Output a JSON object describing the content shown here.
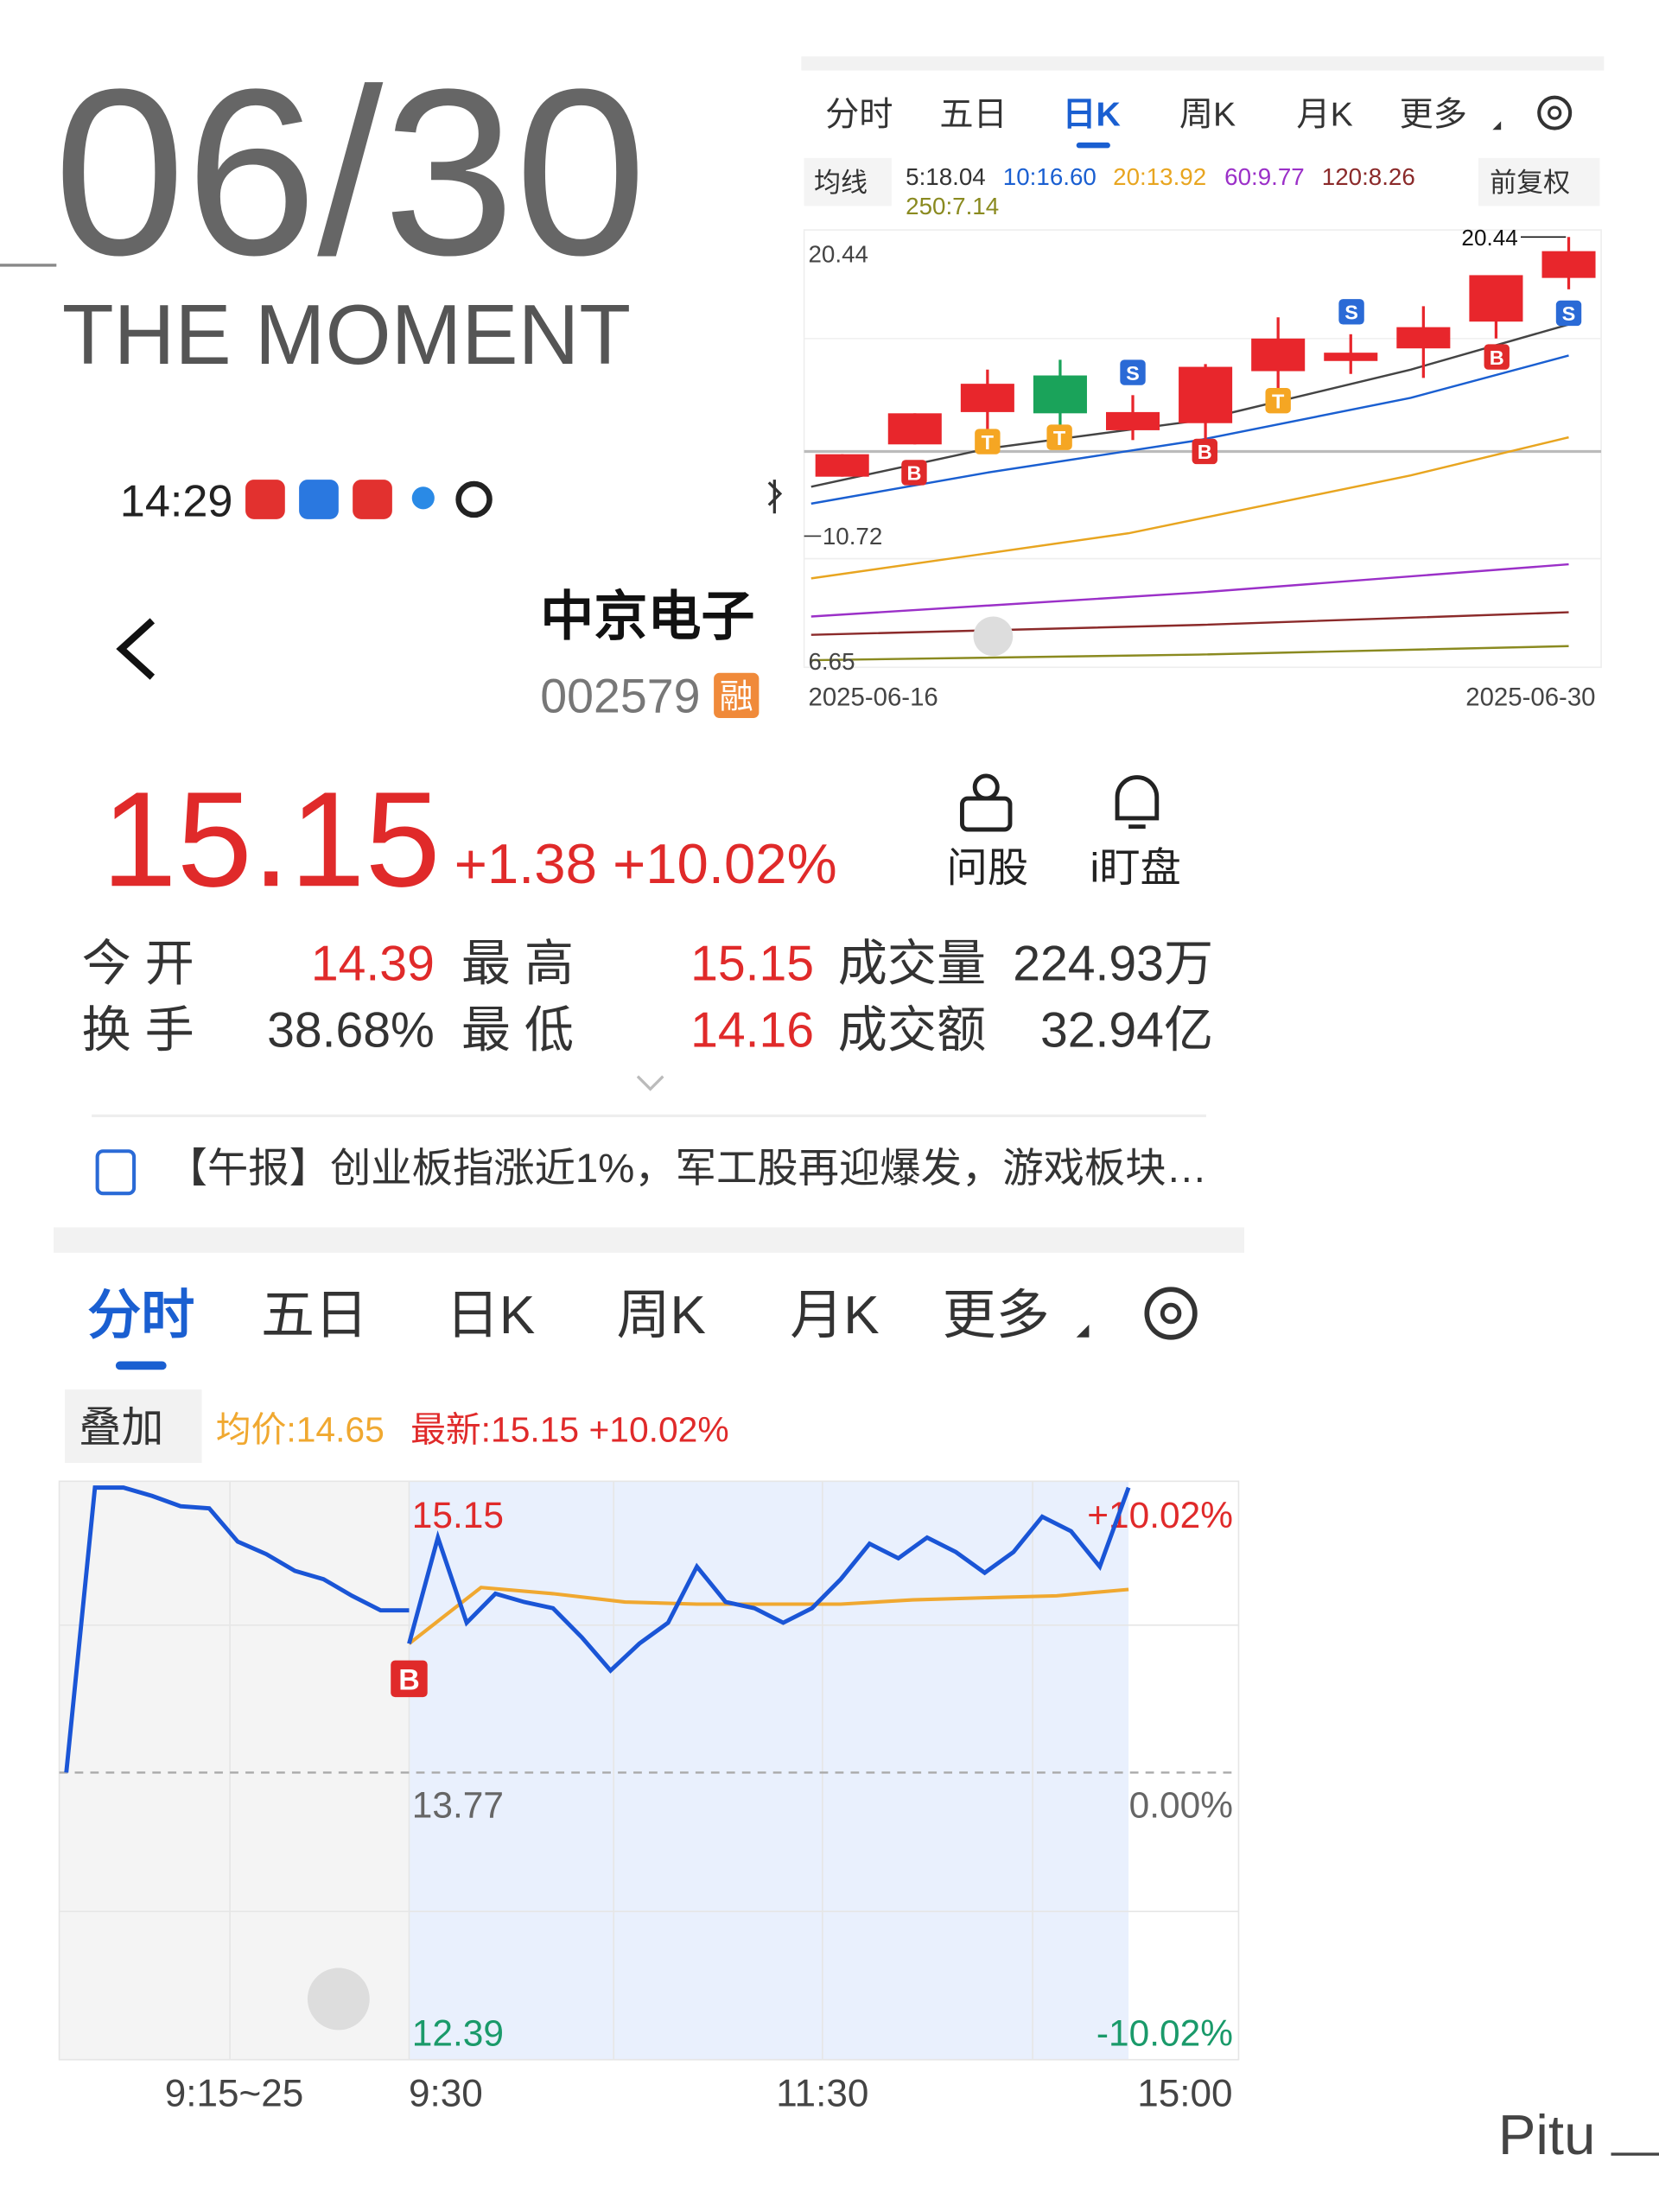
{
  "header": {
    "date": "06/30",
    "tagline": "THE MOMENT",
    "time": "14:29"
  },
  "stock": {
    "name": "中京电子",
    "code": "002579",
    "badge": "融",
    "price": "15.15",
    "change": "+1.38 +10.02%",
    "actions": [
      "问股",
      "i盯盘"
    ]
  },
  "stats": [
    [
      "今 开",
      "14.39",
      "最 高",
      "15.15",
      "成交量",
      "224.93万"
    ],
    [
      "换 手",
      "38.68%",
      "最 低",
      "14.16",
      "成交额",
      "32.94亿"
    ]
  ],
  "news": "【午报】创业板指涨近1%，军工股再迎爆发，游戏板块…",
  "kline": {
    "tabs": [
      "分时",
      "五日",
      "日K",
      "周K",
      "月K",
      "更多"
    ],
    "active": 2,
    "ma_button": "均线",
    "ma": [
      "5:18.04",
      "10:16.60",
      "20:13.92",
      "60:9.77",
      "120:8.26",
      "250:7.14"
    ],
    "adjust": "前复权",
    "levels": [
      20.44,
      10.72,
      6.65
    ],
    "high": 20.44,
    "dates": [
      "2025-06-16",
      "2025-06-30"
    ],
    "up_color": "#e8262c",
    "down_color": "#1aa35a",
    "candles": [
      {
        "open": 12.65,
        "close": 13.38,
        "high": 13.38,
        "low": 12.65
      },
      {
        "open": 13.7,
        "close": 14.71,
        "high": 14.71,
        "low": 13.7
      },
      {
        "open": 14.75,
        "close": 15.67,
        "high": 16.13,
        "low": 14.16
      },
      {
        "open": 15.94,
        "close": 14.71,
        "high": 16.45,
        "low": 14.16
      },
      {
        "open": 14.16,
        "close": 14.75,
        "high": 15.3,
        "low": 13.84
      },
      {
        "open": 14.39,
        "close": 16.22,
        "high": 16.31,
        "low": 13.7
      },
      {
        "open": 16.08,
        "close": 17.14,
        "high": 17.83,
        "low": 15.53
      },
      {
        "open": 16.41,
        "close": 16.68,
        "high": 17.28,
        "low": 15.99
      },
      {
        "open": 16.82,
        "close": 17.51,
        "high": 18.19,
        "low": 15.86
      },
      {
        "open": 17.69,
        "close": 19.2,
        "high": 19.2,
        "low": 17.14
      },
      {
        "open": 19.11,
        "close": 19.98,
        "high": 20.44,
        "low": 18.74
      }
    ],
    "markers": [
      "B",
      "T",
      "T",
      "S",
      "B",
      "T",
      "S",
      "B",
      "S"
    ]
  },
  "intraday": {
    "tabs": [
      "分时",
      "五日",
      "日K",
      "周K",
      "月K",
      "更多"
    ],
    "active": 0,
    "overlay": "叠加",
    "avg": "均价:14.65",
    "last": "最新:15.15 +10.02%",
    "prices": [
      15.15,
      13.77,
      12.39
    ],
    "pct": [
      "+10.02%",
      "0.00%",
      "-10.02%"
    ],
    "times": [
      "9:15~25",
      "9:30",
      "11:30",
      "15:00"
    ],
    "marker": "B",
    "line_color": "#1a55d6",
    "avg_color": "#f0a830",
    "premarket": [
      13.77,
      15.14,
      15.14,
      15.1,
      15.05,
      15.04,
      14.88,
      14.82,
      14.74,
      14.7,
      14.62,
      14.55,
      14.55
    ],
    "price": [
      14.39,
      14.9,
      14.49,
      14.63,
      14.59,
      14.56,
      14.42,
      14.26,
      14.39,
      14.49,
      14.76,
      14.59,
      14.56,
      14.49,
      14.56,
      14.7,
      14.87,
      14.8,
      14.9,
      14.83,
      14.73,
      14.83,
      15.0,
      14.93,
      14.76,
      15.14
    ],
    "average": [
      14.39,
      14.66,
      14.63,
      14.59,
      14.58,
      14.58,
      14.58,
      14.6,
      14.61,
      14.62,
      14.65
    ]
  },
  "watermark": "Pitu"
}
